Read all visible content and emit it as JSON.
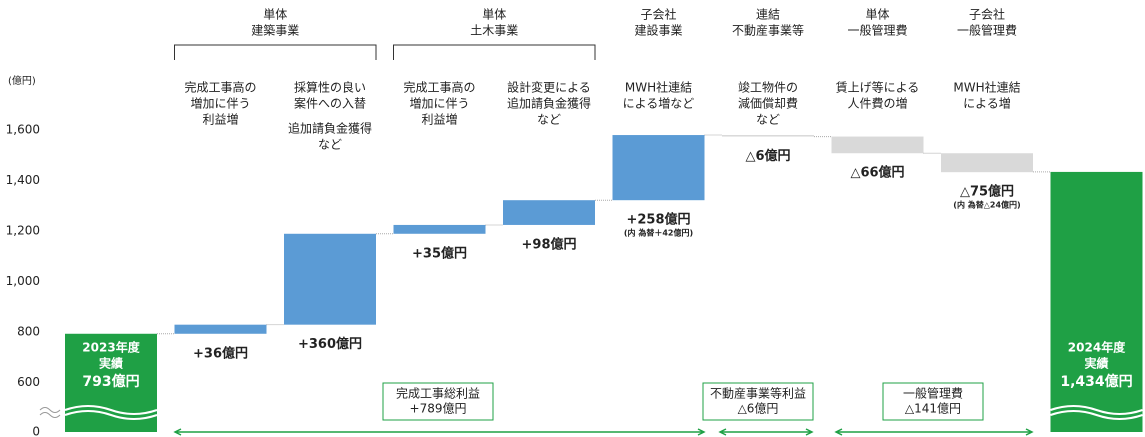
{
  "chart_data": {
    "type": "waterfall",
    "ylabel": "(億円)",
    "ylim": [
      600,
      1700
    ],
    "axis_break": true,
    "yticks": [
      0,
      600,
      800,
      {
        "value": 1000,
        "label": "1,000"
      },
      {
        "value": 1200,
        "label": "1,200"
      },
      {
        "value": 1400,
        "label": "1,400"
      },
      {
        "value": 1600,
        "label": "1,600"
      }
    ],
    "grid": false,
    "headers": [
      [
        "単体",
        "建築事業"
      ],
      [
        "単体",
        "土木事業"
      ],
      [
        "子会社",
        "建設事業"
      ],
      [
        "連結",
        "不動産事業等"
      ],
      [
        "単体",
        "一般管理費"
      ],
      [
        "子会社",
        "一般管理費"
      ]
    ],
    "categories": [
      [
        "2023年度",
        "実績"
      ],
      [
        "完成工事高の",
        "増加に伴う",
        "利益増"
      ],
      [
        "採算性の良い",
        "案件への入替",
        "追加請負金獲得",
        "など"
      ],
      [
        "完成工事高の",
        "増加に伴う",
        "利益増"
      ],
      [
        "設計変更による",
        "追加請負金獲得",
        "など"
      ],
      [
        "MWH社連結",
        "による増など"
      ],
      [
        "竣工物件の",
        "減価償却費",
        "など"
      ],
      [
        "賃上げ等による",
        "人件費の増"
      ],
      [
        "MWH社連結",
        "による増"
      ],
      [
        "2024年度",
        "実績"
      ]
    ],
    "measure": [
      "absolute",
      "relative",
      "relative",
      "relative",
      "relative",
      "relative",
      "relative",
      "relative",
      "relative",
      "absolute"
    ],
    "values": [
      793,
      36,
      360,
      35,
      98,
      258,
      -6,
      -66,
      -75,
      1434
    ],
    "value_labels": [
      "793億円",
      "+36億円",
      "+360億円",
      "+35億円",
      "+98億円",
      "+258億円",
      "△6億円",
      "△66億円",
      "△75億円",
      "1,434億円"
    ],
    "notes": [
      null,
      null,
      null,
      null,
      null,
      "(内 為替＋42億円)",
      null,
      null,
      "(内 為替△24億円)",
      null
    ],
    "colors": {
      "total": "#1fa045",
      "increase": "#5b9bd5",
      "decrease": "#d9d9d9",
      "increase_label": "#3b6ea8",
      "decrease_label": "#c00000"
    },
    "summaries": [
      [
        "完成工事総利益",
        "+789億円"
      ],
      [
        "不動産事業等利益",
        "△6億円"
      ],
      [
        "一般管理費",
        "△141億円"
      ]
    ]
  }
}
